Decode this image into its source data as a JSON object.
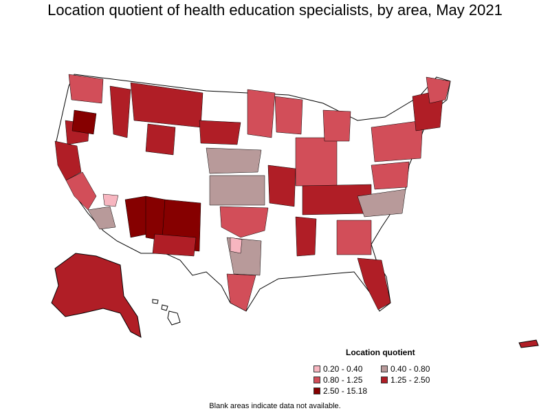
{
  "title": "Location quotient of health education specialists, by area, May 2021",
  "legend": {
    "title": "Location quotient",
    "items": [
      {
        "label": "0.20 - 0.40",
        "color": "#f7b6c0"
      },
      {
        "label": "0.40 - 0.80",
        "color": "#b89a9a"
      },
      {
        "label": "0.80 - 1.25",
        "color": "#d24e59"
      },
      {
        "label": "1.25 - 2.50",
        "color": "#b01e26"
      },
      {
        "label": "2.50 - 15.18",
        "color": "#860000"
      }
    ]
  },
  "note": "Blank areas indicate data not available.",
  "colors": {
    "blank": "#ffffff",
    "outline": "#000000",
    "background": "#ffffff"
  }
}
